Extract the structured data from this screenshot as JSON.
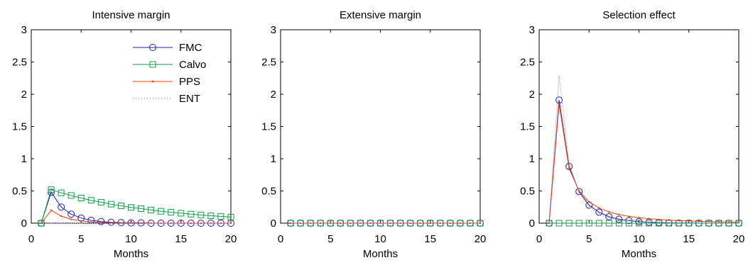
{
  "colors": {
    "FMC": "#1f1fa8",
    "Calvo": "#1a9a4a",
    "PPS": "#e8420c",
    "ENT": "#7070d0"
  },
  "chart_data": [
    {
      "type": "line",
      "title": "Intensive margin",
      "xlabel": "Months",
      "ylabel": "",
      "xlim": [
        0,
        20
      ],
      "ylim": [
        0,
        3
      ],
      "xticks": [
        0,
        5,
        10,
        15,
        20
      ],
      "yticks": [
        0,
        0.5,
        1,
        1.5,
        2,
        2.5,
        3
      ],
      "xticklabels": [
        "0",
        "5",
        "10",
        "15",
        "20"
      ],
      "yticklabels": [
        "0",
        "0.5",
        "1",
        "1.5",
        "2",
        "2.5",
        "3"
      ],
      "legend": {
        "placement": "top-right",
        "entries": [
          "FMC",
          "Calvo",
          "PPS",
          "ENT"
        ]
      },
      "x": [
        1,
        2,
        3,
        4,
        5,
        6,
        7,
        8,
        9,
        10,
        11,
        12,
        13,
        14,
        15,
        16,
        17,
        18,
        19,
        20
      ],
      "series": [
        {
          "name": "FMC",
          "marker": "circle",
          "values": [
            0,
            0.48,
            0.25,
            0.14,
            0.08,
            0.045,
            0.025,
            0.015,
            0.01,
            0.005,
            0.005,
            0,
            0,
            0,
            0,
            0,
            0,
            0,
            0,
            0
          ]
        },
        {
          "name": "Calvo",
          "marker": "square",
          "values": [
            0,
            0.52,
            0.47,
            0.43,
            0.39,
            0.355,
            0.325,
            0.295,
            0.27,
            0.245,
            0.225,
            0.205,
            0.185,
            0.17,
            0.155,
            0.14,
            0.128,
            0.115,
            0.105,
            0.095
          ]
        },
        {
          "name": "PPS",
          "marker": "dot",
          "values": [
            0,
            0.2,
            0.11,
            0.06,
            0.035,
            0.02,
            0.012,
            0.008,
            0.005,
            0.003,
            0.002,
            0.001,
            0,
            0,
            0,
            0,
            0,
            0,
            0,
            0
          ]
        },
        {
          "name": "ENT",
          "marker": "dotted",
          "values": [
            0,
            0,
            0,
            0,
            0,
            0,
            0,
            0,
            0,
            0,
            0,
            0,
            0,
            0,
            0,
            0,
            0,
            0,
            0,
            0
          ]
        }
      ]
    },
    {
      "type": "line",
      "title": "Extensive margin",
      "xlabel": "Months",
      "ylabel": "",
      "xlim": [
        0,
        20
      ],
      "ylim": [
        0,
        3
      ],
      "xticks": [
        0,
        5,
        10,
        15,
        20
      ],
      "yticks": [
        0,
        0.5,
        1,
        1.5,
        2,
        2.5,
        3
      ],
      "xticklabels": [
        "0",
        "5",
        "10",
        "15",
        "20"
      ],
      "yticklabels": [
        "0",
        "0.5",
        "1",
        "1.5",
        "2",
        "2.5",
        "3"
      ],
      "x": [
        1,
        2,
        3,
        4,
        5,
        6,
        7,
        8,
        9,
        10,
        11,
        12,
        13,
        14,
        15,
        16,
        17,
        18,
        19,
        20
      ],
      "series": [
        {
          "name": "FMC",
          "marker": "circle",
          "values": [
            0,
            0,
            0,
            0,
            0,
            0,
            0,
            0,
            0,
            0,
            0,
            0,
            0,
            0,
            0,
            0,
            0,
            0,
            0,
            0
          ]
        },
        {
          "name": "Calvo",
          "marker": "square",
          "values": [
            0,
            0,
            0,
            0,
            0,
            0,
            0,
            0,
            0,
            0,
            0,
            0,
            0,
            0,
            0,
            0,
            0,
            0,
            0,
            0
          ]
        },
        {
          "name": "PPS",
          "marker": "dot",
          "values": [
            0,
            0,
            0,
            0,
            0,
            0,
            0,
            0,
            0,
            0,
            0,
            0,
            0,
            0,
            0,
            0,
            0,
            0,
            0,
            0
          ]
        },
        {
          "name": "ENT",
          "marker": "dotted",
          "values": [
            0,
            0,
            0,
            0,
            0,
            0,
            0,
            0,
            0,
            0,
            0,
            0,
            0,
            0,
            0,
            0,
            0,
            0,
            0,
            0
          ]
        }
      ]
    },
    {
      "type": "line",
      "title": "Selection effect",
      "xlabel": "Months",
      "ylabel": "",
      "xlim": [
        0,
        20
      ],
      "ylim": [
        0,
        3
      ],
      "xticks": [
        0,
        5,
        10,
        15,
        20
      ],
      "yticks": [
        0,
        0.5,
        1,
        1.5,
        2,
        2.5,
        3
      ],
      "xticklabels": [
        "0",
        "5",
        "10",
        "15",
        "20"
      ],
      "yticklabels": [
        "0",
        "0.5",
        "1",
        "1.5",
        "2",
        "2.5",
        "3"
      ],
      "x": [
        1,
        2,
        3,
        4,
        5,
        6,
        7,
        8,
        9,
        10,
        11,
        12,
        13,
        14,
        15,
        16,
        17,
        18,
        19,
        20
      ],
      "series": [
        {
          "name": "FMC",
          "marker": "circle",
          "values": [
            0,
            1.91,
            0.88,
            0.49,
            0.28,
            0.17,
            0.1,
            0.06,
            0.04,
            0.025,
            0.015,
            0.01,
            0.005,
            0.003,
            0.002,
            0.001,
            0,
            0,
            0,
            0
          ]
        },
        {
          "name": "Calvo",
          "marker": "square",
          "values": [
            0,
            0,
            0,
            0,
            0,
            0,
            0,
            0,
            0,
            0,
            0,
            0,
            0,
            0,
            0,
            0,
            0,
            0,
            0,
            0
          ]
        },
        {
          "name": "PPS",
          "marker": "dot",
          "values": [
            0,
            1.85,
            0.85,
            0.5,
            0.33,
            0.235,
            0.175,
            0.135,
            0.105,
            0.085,
            0.07,
            0.058,
            0.048,
            0.04,
            0.034,
            0.029,
            0.025,
            0.021,
            0.018,
            0.015
          ]
        },
        {
          "name": "ENT",
          "marker": "dotted",
          "values": [
            0,
            2.28,
            0.93,
            0.47,
            0.26,
            0.15,
            0.09,
            0.055,
            0.035,
            0.022,
            0.014,
            0.009,
            0.006,
            0.004,
            0.002,
            0.001,
            0,
            0,
            0,
            0
          ]
        }
      ]
    }
  ]
}
